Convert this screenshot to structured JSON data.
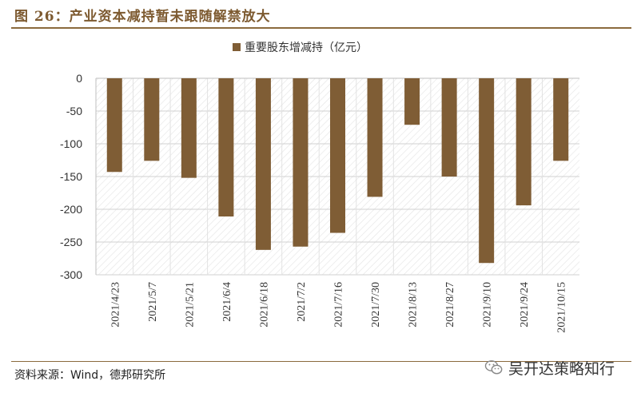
{
  "figure": {
    "title": "图 26：产业资本减持暂未跟随解禁放大",
    "source": "资料来源：Wind，德邦研究所",
    "watermark_text": "吴开达策略知行",
    "watermark_icon": "wechat-icon"
  },
  "chart_data": {
    "type": "bar",
    "categories": [
      "2021/4/23",
      "2021/5/7",
      "2021/5/21",
      "2021/6/4",
      "2021/6/18",
      "2021/7/2",
      "2021/7/16",
      "2021/7/30",
      "2021/8/13",
      "2021/8/27",
      "2021/9/10",
      "2021/9/24",
      "2021/10/15"
    ],
    "series": [
      {
        "name": "重要股东增减持（亿元）",
        "values": [
          -143,
          -126,
          -152,
          -211,
          -262,
          -257,
          -236,
          -181,
          -71,
          -150,
          -282,
          -194,
          -126
        ],
        "color": "#7f5d35"
      }
    ],
    "ylim": [
      -300,
      0
    ],
    "yticks": [
      0,
      -50,
      -100,
      -150,
      -200,
      -250,
      -300
    ],
    "xlabel": "",
    "ylabel": "",
    "grid": true,
    "legend_position": "top-center"
  }
}
